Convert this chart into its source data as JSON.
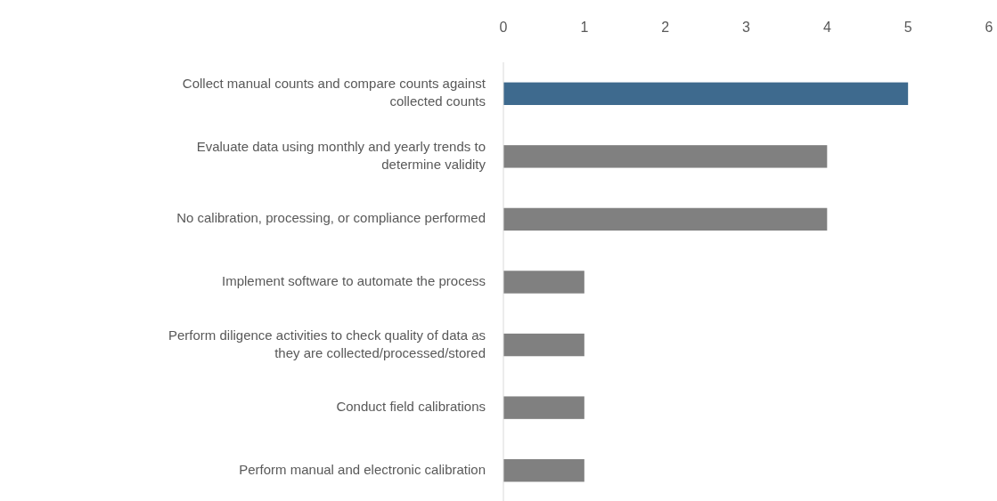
{
  "chart_data": {
    "type": "bar",
    "orientation": "horizontal",
    "categories": [
      "Collect manual counts and compare counts against collected counts",
      "Evaluate data using monthly and yearly trends to determine validity",
      "No calibration, processing, or compliance performed",
      "Implement software to automate the process",
      "Perform diligence activities to check quality of data as they are collected/processed/stored",
      "Conduct field calibrations",
      "Perform manual and electronic calibration"
    ],
    "values": [
      5,
      4,
      4,
      1,
      1,
      1,
      1
    ],
    "colors": [
      "#3e6a8e",
      "#808080",
      "#808080",
      "#808080",
      "#808080",
      "#808080",
      "#808080"
    ],
    "xlim": [
      0,
      6
    ],
    "xticks": [
      0,
      1,
      2,
      3,
      4,
      5,
      6
    ],
    "grid": false
  }
}
